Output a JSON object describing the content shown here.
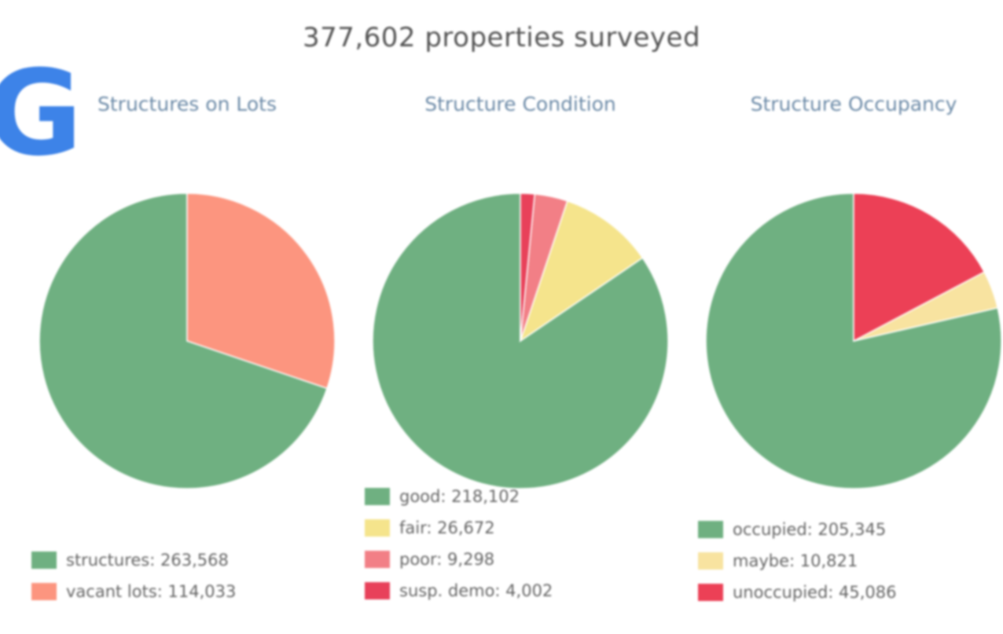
{
  "page": {
    "title": "377,602 properties surveyed"
  },
  "chart_data": [
    {
      "type": "pie",
      "title": "Structures on Lots",
      "slices": [
        {
          "label": "structures",
          "value": 263568,
          "color": "#6fb081"
        },
        {
          "label": "vacant lots",
          "value": 114033,
          "color": "#fc957f"
        }
      ]
    },
    {
      "type": "pie",
      "title": "Structure Condition",
      "slices": [
        {
          "label": "good",
          "value": 218102,
          "color": "#6fb081"
        },
        {
          "label": "fair",
          "value": 26672,
          "color": "#f5e48c"
        },
        {
          "label": "poor",
          "value": 9298,
          "color": "#f27f86"
        },
        {
          "label": "susp. demo",
          "value": 4002,
          "color": "#e8415a"
        }
      ]
    },
    {
      "type": "pie",
      "title": "Structure Occupancy",
      "slices": [
        {
          "label": "occupied",
          "value": 205345,
          "color": "#6fb081"
        },
        {
          "label": "maybe",
          "value": 10821,
          "color": "#f8e3a0"
        },
        {
          "label": "unoccupied",
          "value": 45086,
          "color": "#ec4056"
        }
      ]
    }
  ]
}
